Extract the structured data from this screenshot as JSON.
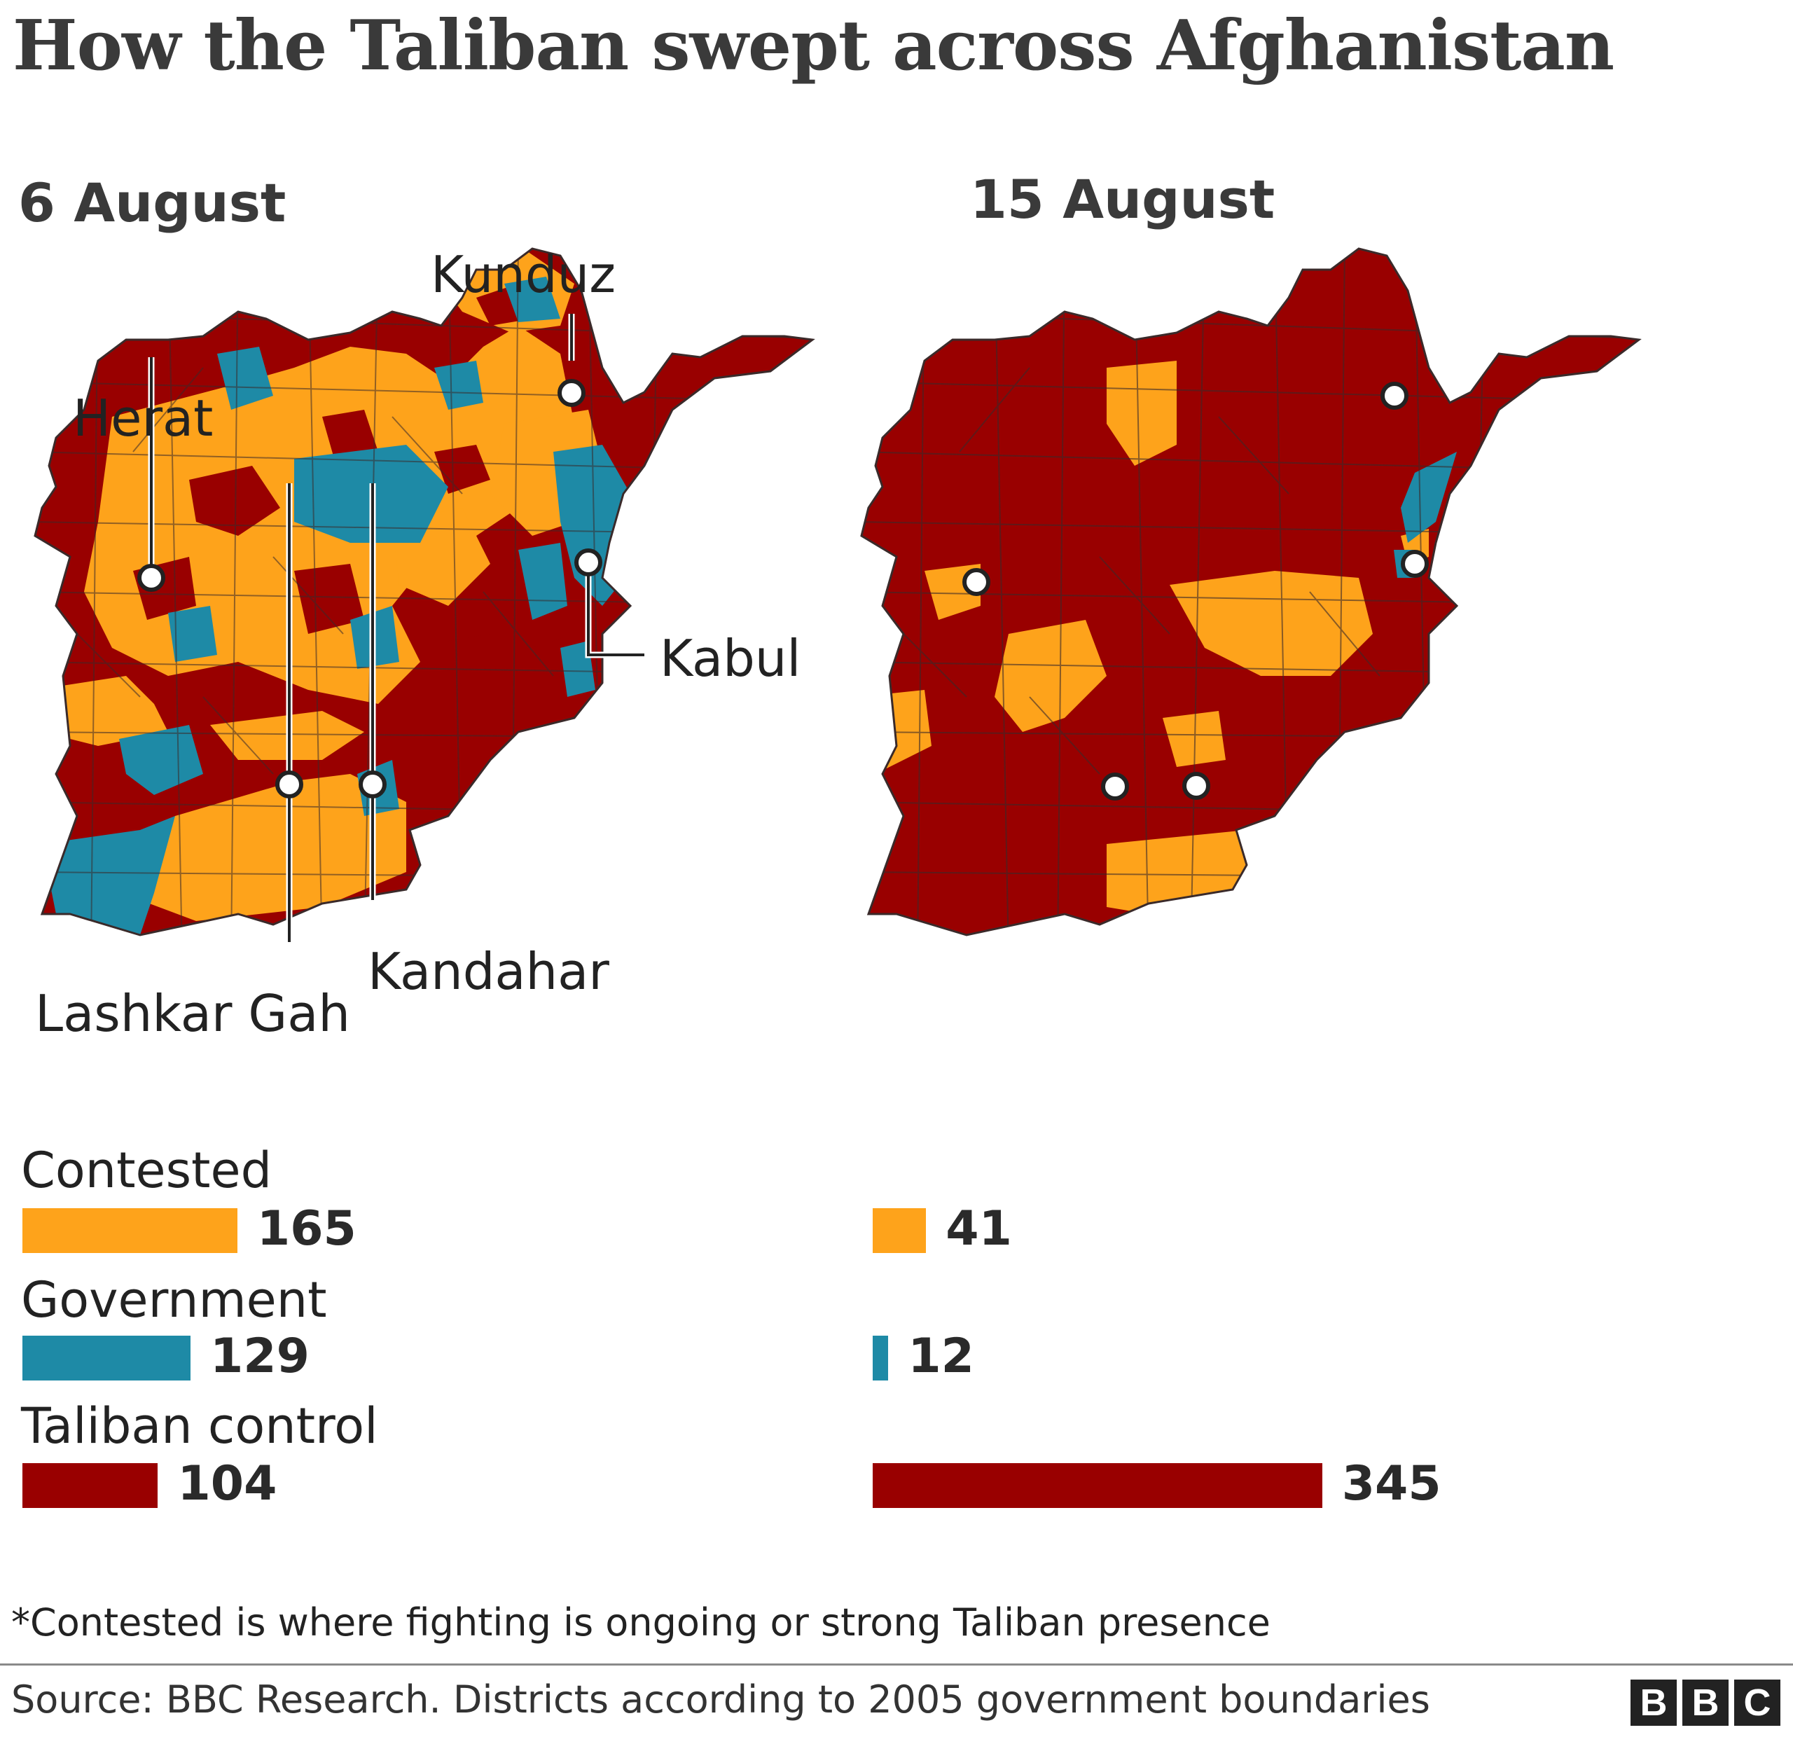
{
  "title": "How the Taliban swept across Afghanistan",
  "colors": {
    "contested": "#fea31b",
    "government": "#1e8aa6",
    "taliban": "#990000",
    "border": "#3a2a2a"
  },
  "maps": [
    {
      "date": "6 August",
      "city_labels": {
        "kunduz": "Kunduz",
        "herat": "Herat",
        "kabul": "Kabul",
        "lashkar_gah": "Lashkar Gah",
        "kandahar": "Kandahar"
      }
    },
    {
      "date": "15 August"
    }
  ],
  "chart_data": [
    {
      "type": "bar",
      "title": "6 August",
      "categories": [
        "Contested",
        "Government",
        "Taliban control"
      ],
      "values": [
        165,
        129,
        104
      ]
    },
    {
      "type": "bar",
      "title": "15 August",
      "categories": [
        "Contested",
        "Government",
        "Taliban control"
      ],
      "values": [
        41,
        12,
        345
      ]
    }
  ],
  "legend": {
    "contested": "Contested",
    "government": "Government",
    "taliban": "Taliban control"
  },
  "bars": {
    "aug6": {
      "contested": "165",
      "government": "129",
      "taliban": "104"
    },
    "aug15": {
      "contested": "41",
      "government": "12",
      "taliban": "345"
    }
  },
  "footnote": "*Contested is where fighting is ongoing or strong Taliban presence",
  "source": "Source: BBC Research. Districts according to 2005 government boundaries",
  "logo": [
    "B",
    "B",
    "C"
  ]
}
